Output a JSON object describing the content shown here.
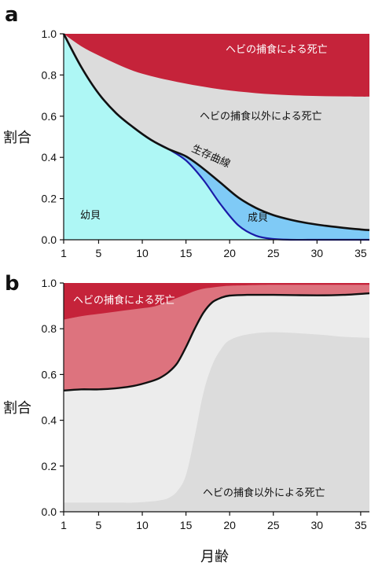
{
  "chart_data": [
    {
      "type": "area",
      "panel_label": "a",
      "title": "",
      "xlabel": "",
      "ylabel": "割合",
      "xlim": [
        1,
        36
      ],
      "ylim": [
        0,
        1
      ],
      "xticks": [
        1,
        5,
        10,
        15,
        20,
        25,
        30,
        35
      ],
      "yticks": [
        "0.0",
        "0.2",
        "0.4",
        "0.6",
        "0.8",
        "1.0"
      ],
      "grid": false,
      "colors": {
        "snake_predation": "#c5233a",
        "other_death": "#dcdcdc",
        "juvenile": "#aef7f5",
        "adult": "#7fcaf6",
        "survival_line": "#111111",
        "juvenile_line": "#1a1aa8"
      },
      "annotations": {
        "snake_predation": "ヘビの捕食による死亡",
        "other_death": "ヘビの捕食以外による死亡",
        "survival_curve": "生存曲線",
        "juvenile": "幼貝",
        "adult": "成貝"
      },
      "x": [
        1,
        3,
        5,
        7,
        9,
        11,
        13,
        15,
        17,
        19,
        21,
        23,
        25,
        27,
        29,
        31,
        33,
        35,
        36
      ],
      "series": [
        {
          "key": "survival_curve",
          "values": [
            1.0,
            0.84,
            0.71,
            0.615,
            0.545,
            0.485,
            0.44,
            0.405,
            0.345,
            0.275,
            0.205,
            0.155,
            0.12,
            0.097,
            0.08,
            0.068,
            0.058,
            0.05,
            0.047
          ]
        },
        {
          "key": "juvenile_boundary",
          "values": [
            1.0,
            0.84,
            0.71,
            0.615,
            0.545,
            0.485,
            0.44,
            0.385,
            0.29,
            0.17,
            0.07,
            0.02,
            0.004,
            0.0,
            0.0,
            0.0,
            0.0,
            0.0,
            0.0
          ]
        },
        {
          "key": "predation_boundary",
          "values": [
            1.0,
            0.94,
            0.895,
            0.855,
            0.82,
            0.795,
            0.775,
            0.758,
            0.743,
            0.73,
            0.72,
            0.712,
            0.706,
            0.702,
            0.699,
            0.697,
            0.696,
            0.695,
            0.695
          ]
        }
      ]
    },
    {
      "type": "area",
      "panel_label": "b",
      "title": "",
      "xlabel": "月齢",
      "ylabel": "割合",
      "xlim": [
        1,
        36
      ],
      "ylim": [
        0,
        1
      ],
      "xticks": [
        1,
        5,
        10,
        15,
        20,
        25,
        30,
        35
      ],
      "yticks": [
        "0.0",
        "0.2",
        "0.4",
        "0.6",
        "0.8",
        "1.0"
      ],
      "grid": false,
      "colors": {
        "snake_predation_dark": "#c5233a",
        "snake_predation_light": "#dd737e",
        "other_death_light": "#ececec",
        "other_death_dark": "#dcdcdc",
        "boundary_line": "#111111"
      },
      "annotations": {
        "snake_predation": "ヘビの捕食による死亡",
        "other_death": "ヘビの捕食以外による死亡"
      },
      "x": [
        1,
        3,
        5,
        7,
        9,
        11,
        12,
        13,
        14,
        15,
        16,
        17,
        18,
        19,
        20,
        22,
        25,
        30,
        33,
        36
      ],
      "series": [
        {
          "key": "black_boundary",
          "values": [
            0.53,
            0.535,
            0.535,
            0.54,
            0.55,
            0.57,
            0.585,
            0.61,
            0.65,
            0.72,
            0.8,
            0.87,
            0.915,
            0.935,
            0.945,
            0.948,
            0.948,
            0.946,
            0.948,
            0.955
          ]
        },
        {
          "key": "dark_red_bottom",
          "values": [
            0.84,
            0.855,
            0.865,
            0.875,
            0.885,
            0.895,
            0.905,
            0.92,
            0.935,
            0.95,
            0.965,
            0.975,
            0.98,
            0.985,
            0.988,
            0.99,
            0.992,
            0.992,
            0.992,
            0.992
          ]
        },
        {
          "key": "inner_gray_top",
          "values": [
            0.04,
            0.04,
            0.04,
            0.04,
            0.04,
            0.045,
            0.05,
            0.06,
            0.09,
            0.16,
            0.33,
            0.52,
            0.64,
            0.71,
            0.75,
            0.775,
            0.785,
            0.775,
            0.765,
            0.76
          ]
        }
      ]
    }
  ]
}
